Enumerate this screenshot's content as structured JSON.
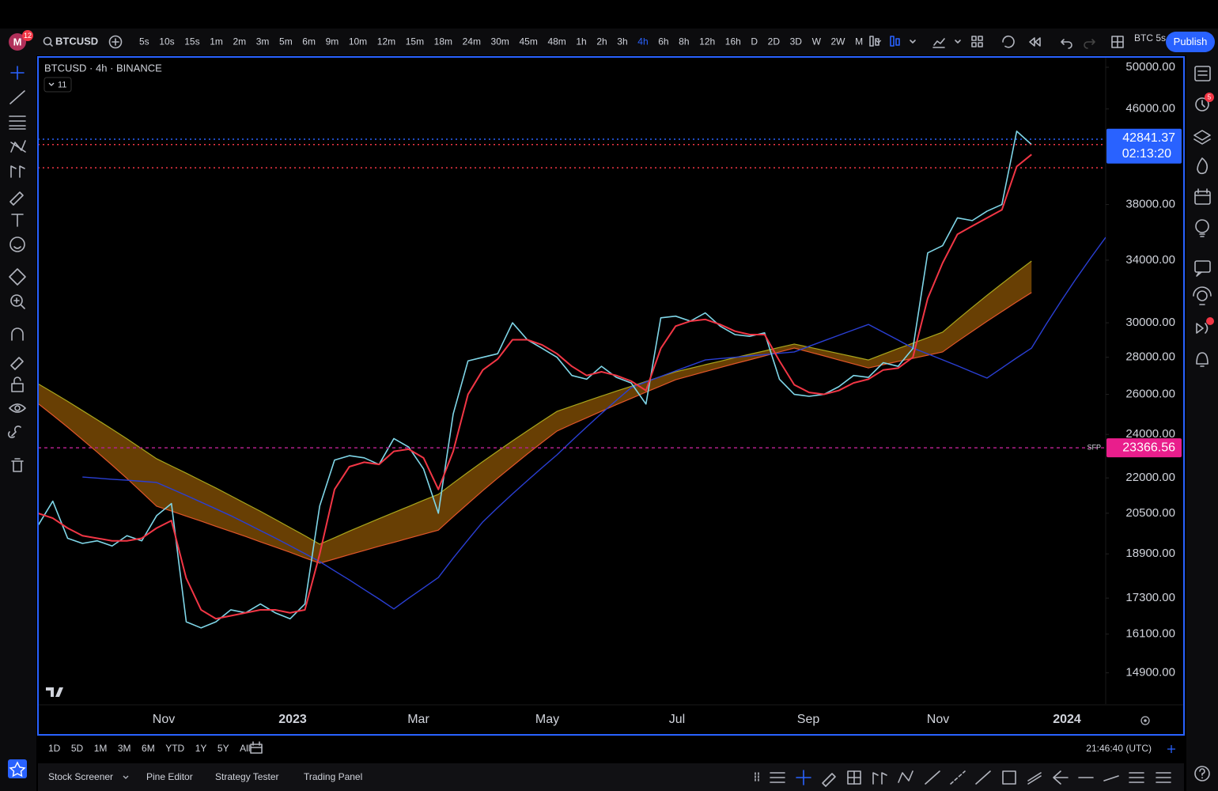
{
  "toolbar": {
    "avatar": "M",
    "badge": "12",
    "symbol": "BTCUSD",
    "intervals": [
      "5s",
      "10s",
      "15s",
      "1m",
      "2m",
      "3m",
      "5m",
      "6m",
      "9m",
      "10m",
      "12m",
      "15m",
      "18m",
      "24m",
      "30m",
      "45m",
      "48m",
      "1h",
      "2h",
      "3h",
      "4h",
      "6h",
      "8h",
      "12h",
      "16h",
      "D",
      "2D",
      "3D",
      "W",
      "2W",
      "M"
    ],
    "active_interval_index": 20,
    "symbol_short": "BTC 5s",
    "publish": "Publish"
  },
  "sidebar": {
    "alerts_badge": "5"
  },
  "chart_data": {
    "type": "line",
    "title": "BTCUSD · 4h · BINANCE",
    "indicator_count": "11",
    "log_scale": true,
    "grid": false,
    "ylim": [
      14000,
      50800
    ],
    "yticks": [
      {
        "value": 50000,
        "label": "50000.00"
      },
      {
        "value": 46000,
        "label": "46000.00"
      },
      {
        "value": 38000,
        "label": "38000.00"
      },
      {
        "value": 34000,
        "label": "34000.00"
      },
      {
        "value": 30000,
        "label": "30000.00"
      },
      {
        "value": 28000,
        "label": "28000.00"
      },
      {
        "value": 26000,
        "label": "26000.00"
      },
      {
        "value": 24000,
        "label": "24000.00"
      },
      {
        "value": 22000,
        "label": "22000.00"
      },
      {
        "value": 20500,
        "label": "20500.00"
      },
      {
        "value": 18900,
        "label": "18900.00"
      },
      {
        "value": 17300,
        "label": "17300.00"
      },
      {
        "value": 16100,
        "label": "16100.00"
      },
      {
        "value": 14900,
        "label": "14900.00"
      }
    ],
    "time_labels": [
      "Nov",
      "2023",
      "Mar",
      "May",
      "Jul",
      "Sep",
      "Nov",
      "2024"
    ],
    "band": {
      "color": "#7a4a05",
      "upper_color": "#a8a61c",
      "lower_color": "#e0552a",
      "upper": [
        26560,
        26100,
        25640,
        25170,
        24710,
        24250,
        23790,
        23320,
        22860,
        22530,
        22210,
        21880,
        21560,
        21230,
        20900,
        20580,
        20250,
        19920,
        19600,
        19270,
        19520,
        19780,
        20030,
        20280,
        20530,
        20780,
        21040,
        21290,
        21770,
        22250,
        22730,
        23210,
        23690,
        24170,
        24650,
        25130,
        25390,
        25650,
        25910,
        26170,
        26420,
        26680,
        26940,
        27200,
        27390,
        27590,
        27780,
        27980,
        28170,
        28360,
        28560,
        28750,
        28570,
        28390,
        28210,
        28030,
        27850,
        28170,
        28490,
        28800,
        29120,
        29440,
        30190,
        30940,
        31690,
        32440,
        33190,
        33940,
        null,
        null,
        null,
        null,
        null
      ],
      "lower": [
        25530,
        24940,
        24350,
        23750,
        23160,
        22570,
        21980,
        21380,
        20790,
        20590,
        20380,
        20180,
        19970,
        19770,
        19570,
        19360,
        19160,
        18960,
        18750,
        18550,
        18710,
        18870,
        19030,
        19190,
        19340,
        19500,
        19660,
        19820,
        20360,
        20900,
        21450,
        21990,
        22530,
        23080,
        23620,
        24160,
        24490,
        24810,
        25140,
        25470,
        25790,
        26120,
        26440,
        26770,
        26990,
        27210,
        27430,
        27650,
        27860,
        28080,
        28300,
        28520,
        28300,
        28080,
        27850,
        27630,
        27410,
        27590,
        27770,
        27940,
        28120,
        28300,
        28900,
        29490,
        30090,
        30680,
        31280,
        31870,
        null,
        null,
        null,
        null,
        null
      ]
    },
    "series": [
      {
        "color": "#2a3fd4",
        "width": 1.4,
        "values": [
          null,
          null,
          null,
          22040,
          21990,
          21940,
          21900,
          21850,
          21800,
          21520,
          21240,
          20960,
          20680,
          20400,
          20100,
          19800,
          19510,
          19210,
          18910,
          18610,
          18270,
          17940,
          17600,
          17270,
          16930,
          17300,
          17660,
          18030,
          18740,
          19440,
          20150,
          20730,
          21310,
          21880,
          22460,
          23040,
          23700,
          24360,
          25030,
          25690,
          26350,
          26650,
          26950,
          27250,
          27550,
          27850,
          27930,
          28000,
          28080,
          28150,
          28230,
          28300,
          28620,
          28940,
          29260,
          29580,
          29900,
          29440,
          28980,
          28520,
          28190,
          27860,
          27530,
          27190,
          26860,
          27410,
          27970,
          28520,
          29930,
          31340,
          32760,
          34170,
          35590
        ]
      },
      {
        "color": "#7fd6e8",
        "width": 1.6,
        "values": [
          20000,
          21000,
          19500,
          19300,
          19400,
          19200,
          19600,
          19400,
          20400,
          20900,
          16500,
          16300,
          16500,
          16900,
          16800,
          17100,
          16800,
          16600,
          17100,
          20800,
          22800,
          23000,
          22900,
          22600,
          23800,
          23400,
          22400,
          20500,
          25000,
          27800,
          28000,
          28200,
          30000,
          29000,
          28500,
          28000,
          27000,
          26800,
          27500,
          26900,
          26600,
          25500,
          30300,
          30400,
          30100,
          30600,
          29800,
          29300,
          29200,
          29400,
          26800,
          26000,
          25900,
          26000,
          26400,
          27000,
          26900,
          27700,
          27500,
          28500,
          34500,
          35000,
          37000,
          36800,
          37500,
          38000,
          44000,
          42841.37,
          null,
          null,
          null,
          null,
          null
        ]
      },
      {
        "color": "#f23645",
        "width": 2,
        "values": [
          20500,
          20300,
          19900,
          19600,
          19500,
          19400,
          19400,
          19500,
          19900,
          20200,
          18000,
          16900,
          16600,
          16700,
          16800,
          16900,
          16900,
          16800,
          16900,
          18900,
          21500,
          22500,
          22700,
          22600,
          23200,
          23300,
          22900,
          21500,
          23200,
          26000,
          27300,
          27900,
          29000,
          29000,
          28700,
          28200,
          27500,
          27000,
          27200,
          27000,
          26700,
          26200,
          28500,
          29800,
          30100,
          30200,
          29900,
          29500,
          29300,
          29300,
          27800,
          26500,
          26100,
          26000,
          26200,
          26600,
          26800,
          27300,
          27400,
          28000,
          31500,
          33800,
          35800,
          36400,
          37000,
          37600,
          41000,
          42000,
          null,
          null,
          null,
          null,
          null
        ]
      }
    ],
    "levels": [
      {
        "value": 40900,
        "color": "#f23645"
      },
      {
        "value": 43300,
        "color": "#2962ff"
      }
    ],
    "price_lines": [
      {
        "value": 42841.37,
        "countdown": "02:13:20",
        "color": "#2962ff",
        "line_color": "#f23645"
      },
      {
        "value": 23366.56,
        "tag": "SFP",
        "color": "#e91e8c",
        "line_color": "#b0208a"
      }
    ]
  },
  "bottom_bar": {
    "ranges": [
      "1D",
      "5D",
      "1M",
      "3M",
      "6M",
      "YTD",
      "1Y",
      "5Y",
      "All"
    ],
    "clock": "21:46:40 (UTC)"
  },
  "panels": [
    "Stock Screener",
    "Pine Editor",
    "Strategy Tester",
    "Trading Panel"
  ]
}
